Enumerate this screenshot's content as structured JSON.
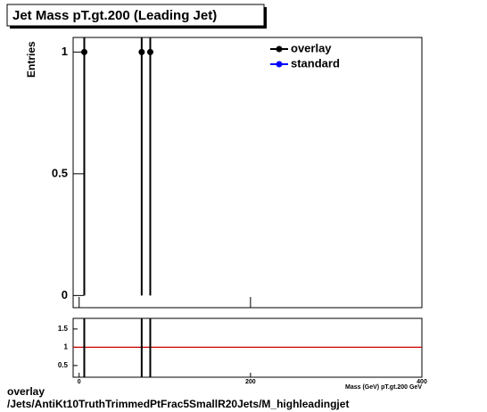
{
  "chart_data": [
    {
      "type": "scatter",
      "title": "Jet Mass pT.gt.200 (Leading Jet)",
      "ylabel": "Entries",
      "xlabel": "Mass (GeV) pT.gt.200 GeV",
      "xlim": [
        -7,
        400
      ],
      "ylim": [
        -0.05,
        1.06
      ],
      "yticks": [
        0,
        0.5,
        1
      ],
      "xticks": [
        0,
        200,
        400
      ],
      "legend": "upper right",
      "series": [
        {
          "name": "overlay",
          "color": "#000000",
          "x": [
            6,
            73,
            83
          ],
          "values": [
            1,
            1,
            1
          ],
          "errors": [
            1,
            1,
            1
          ]
        },
        {
          "name": "standard",
          "color": "#0000ff",
          "x": [],
          "values": [],
          "errors": []
        }
      ]
    },
    {
      "type": "ratio",
      "xlim": [
        -7,
        400
      ],
      "ylim": [
        0.18,
        1.79
      ],
      "yticks": [
        0.5,
        1,
        1.5
      ],
      "xticks": [
        0,
        200,
        400
      ],
      "reference": 1,
      "reference_color": "#cc0000",
      "series": [
        {
          "color": "#000000",
          "x": [
            6,
            73,
            83
          ],
          "values": [
            1,
            1,
            1
          ],
          "errors": [
            1.41,
            1.41,
            1.41
          ]
        }
      ]
    }
  ],
  "footer": {
    "lines": [
      "overlay",
      "/Jets/AntiKt10TruthTrimmedPtFrac5SmallR20Jets/M_highleadingjet"
    ]
  }
}
